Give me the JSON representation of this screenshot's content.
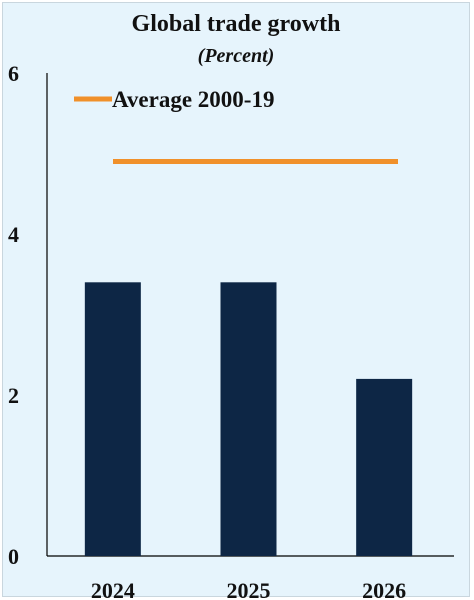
{
  "chart_data": {
    "type": "bar",
    "title": "Global trade growth",
    "subtitle": "(Percent)",
    "categories": [
      "2024",
      "2025",
      "2026"
    ],
    "values": [
      3.4,
      3.4,
      2.2
    ],
    "bar_color": "#0d2645",
    "reference_line": {
      "name": "Average 2000-19",
      "value": 4.9,
      "color": "#f0902a"
    },
    "ylim": [
      0,
      6
    ],
    "yticks": [
      "0",
      "2",
      "4",
      "6"
    ],
    "grid": false,
    "legend_position": "top-left"
  }
}
